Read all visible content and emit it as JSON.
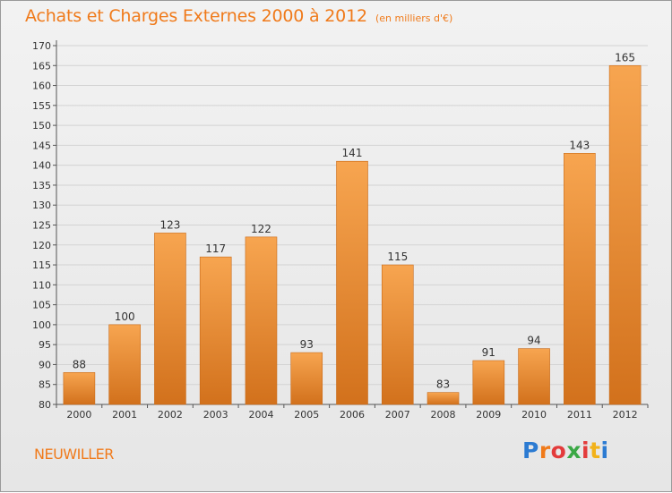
{
  "header": {
    "title": "Achats et Charges Externes 2000 à 2012",
    "subtitle": "(en milliers d'€)"
  },
  "commune": "NEUWILLER",
  "logo": {
    "text": "Proxiti",
    "colors": [
      "#2c7bd2",
      "#f07a1a",
      "#e33b3b",
      "#3aa845",
      "#e33b3b",
      "#f2b21a",
      "#2c7bd2"
    ]
  },
  "colors": {
    "accent": "#f07a1a",
    "bar_light": "#f6a652",
    "bar_dark": "#d4731f",
    "grid": "#cfcfcf"
  },
  "chart_data": {
    "type": "bar",
    "categories": [
      "2000",
      "2001",
      "2002",
      "2003",
      "2004",
      "2005",
      "2006",
      "2007",
      "2008",
      "2009",
      "2010",
      "2011",
      "2012"
    ],
    "values": [
      88,
      100,
      123,
      117,
      122,
      93,
      141,
      115,
      83,
      91,
      94,
      143,
      165
    ],
    "title": "Achats et Charges Externes 2000 à 2012",
    "xlabel": "",
    "ylabel": "",
    "ylim": [
      80,
      170
    ],
    "ytick_step": 5,
    "grid": true,
    "show_data_labels": true
  }
}
